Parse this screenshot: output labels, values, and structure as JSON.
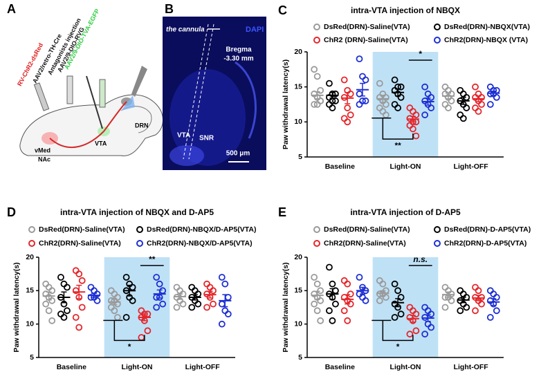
{
  "panel_a": {
    "label": "A",
    "texts": [
      "AAV2/9-DIO-TVA-EGFP",
      "AAV2/9-DIO-RVG",
      "Antagonists injection",
      "AAV2/retro-TH-Cre",
      "RV-ChR2-dsRed",
      "vMed",
      "NAc",
      "VTA",
      "DRN"
    ]
  },
  "panel_b": {
    "label": "B",
    "cannula": "the cannula",
    "stain": "DAPI",
    "bregma": "Bregma",
    "coordinate": "-3.30 mm",
    "vta": "VTA",
    "snr": "SNR",
    "scale": "500 μm"
  },
  "chart_data": [
    {
      "type": "dot",
      "panel_label": "C",
      "title": "intra-VTA injection of NBQX",
      "y_label": "Paw withdrawal latency(s)",
      "categories": [
        "Baseline",
        "Light-ON",
        "Light-OFF"
      ],
      "ylim": [
        5,
        20
      ],
      "yticks": [
        5,
        10,
        15,
        20
      ],
      "shaded": "Light-ON",
      "shade_color": "#bfe1f6",
      "annotations": {
        "upper": "*",
        "lower": "**"
      },
      "series": [
        {
          "name": "DsRed(DRN)-Saline(VTA)",
          "color": "#9a9a9a",
          "points": [
            [
              17.5,
              16.5,
              14.5,
              14,
              13.5,
              13,
              12.5,
              12.5,
              13
            ],
            [
              15.5,
              14,
              13.5,
              13.5,
              13,
              12.5,
              12,
              11.5,
              11
            ],
            [
              15,
              14.5,
              14,
              14,
              13.5,
              13,
              12.5,
              12
            ]
          ],
          "mean": [
            13.8,
            13.3,
            13.7
          ],
          "sem": [
            0.5,
            0.5,
            0.4
          ]
        },
        {
          "name": "DsRed(DRN)-NBQX(VTA)",
          "color": "#000000",
          "points": [
            [
              15.5,
              14,
              14,
              13.5,
              13,
              13,
              12.5,
              12
            ],
            [
              16,
              15,
              15,
              14.5,
              14,
              13.5,
              12.5,
              12
            ],
            [
              14.5,
              14,
              13.5,
              13,
              12.5,
              12,
              11,
              10.5
            ]
          ],
          "mean": [
            13.8,
            14.2,
            13
          ],
          "sem": [
            0.4,
            0.5,
            0.5
          ]
        },
        {
          "name": "ChR2 (DRN)-Saline(VTA)",
          "color": "#e4262b",
          "points": [
            [
              16,
              14.5,
              14,
              13.5,
              12,
              11,
              10.5,
              10
            ],
            [
              12,
              11.5,
              11,
              10.5,
              10,
              10,
              9.5,
              9,
              8
            ],
            [
              15,
              14,
              13.5,
              13.5,
              13,
              12.5,
              12,
              11.5
            ]
          ],
          "mean": [
            13.4,
            10.4,
            13.3
          ],
          "sem": [
            0.8,
            0.4,
            0.4
          ]
        },
        {
          "name": "ChR2(DRN)-NBQX (VTA)",
          "color": "#1d2fd3",
          "points": [
            [
              19,
              16.5,
              16,
              14,
              13,
              13,
              12.5
            ],
            [
              15,
              14,
              13.5,
              13,
              12.5,
              12,
              11
            ],
            [
              15,
              14.5,
              14.5,
              14,
              14,
              13.5,
              12.5
            ]
          ],
          "mean": [
            14.6,
            12.9,
            14.1
          ],
          "sem": [
            0.9,
            0.5,
            0.3
          ]
        }
      ]
    },
    {
      "type": "dot",
      "panel_label": "D",
      "title": "intra-VTA injection of NBQX and D-AP5",
      "y_label": "Paw withdrawal latency(s)",
      "categories": [
        "Baseline",
        "Light-ON",
        "Light-OFF"
      ],
      "ylim": [
        5,
        20
      ],
      "yticks": [
        5,
        10,
        15,
        20
      ],
      "shaded": "Light-ON",
      "shade_color": "#bfe1f6",
      "annotations": {
        "upper": "**",
        "lower": "*"
      },
      "series": [
        {
          "name": "DsRed(DRN)-Saline(VTA)",
          "color": "#9a9a9a",
          "points": [
            [
              16,
              15.5,
              15,
              14.5,
              14,
              13.5,
              13,
              12,
              10.5
            ],
            [
              15,
              14.5,
              14,
              13.5,
              13.5,
              13,
              12.5,
              12,
              11
            ],
            [
              15.5,
              15,
              14.5,
              14,
              13.5,
              13,
              12.5
            ]
          ],
          "mean": [
            14.2,
            13.3,
            14.1
          ],
          "sem": [
            0.6,
            0.4,
            0.4
          ]
        },
        {
          "name": "DsRed(DRN)-NBQX/D-AP5(VTA)",
          "color": "#000000",
          "points": [
            [
              17,
              16,
              15.5,
              14,
              13,
              12,
              11.5,
              11
            ],
            [
              17,
              16,
              15.5,
              15,
              14,
              13.5,
              11
            ],
            [
              15.5,
              15,
              14.5,
              14,
              13.5,
              13,
              12.5
            ]
          ],
          "mean": [
            14,
            15,
            14
          ],
          "sem": [
            0.8,
            0.8,
            0.4
          ]
        },
        {
          "name": "ChR2(DRN)-Saline(VTA)",
          "color": "#e4262b",
          "points": [
            [
              18,
              17.5,
              16.5,
              15,
              14,
              12.5,
              11,
              9.5
            ],
            [
              12,
              11.5,
              11.5,
              11,
              10.5,
              9,
              8
            ],
            [
              16,
              15.5,
              15,
              14.5,
              14,
              13,
              12.5
            ]
          ],
          "mean": [
            14.8,
            11,
            14.4
          ],
          "sem": [
            1,
            0.5,
            0.5
          ]
        },
        {
          "name": "ChR2(DRN)-NBQX/D-AP5(VTA)",
          "color": "#1d2fd3",
          "points": [
            [
              15.5,
              15,
              14.5,
              14,
              14,
              13.5
            ],
            [
              17,
              16,
              15,
              14,
              14,
              13,
              12.5
            ],
            [
              17,
              16,
              14,
              13,
              12,
              11.5,
              10
            ]
          ],
          "mean": [
            14.3,
            14.5,
            13.5
          ],
          "sem": [
            0.3,
            0.6,
            0.9
          ]
        }
      ]
    },
    {
      "type": "dot",
      "panel_label": "E",
      "title": "intra-VTA injection of D-AP5",
      "y_label": "Paw withdrawal latency(s)",
      "categories": [
        "Baseline",
        "Light-ON",
        "Light-OFF"
      ],
      "ylim": [
        5,
        20
      ],
      "yticks": [
        5,
        10,
        15,
        20
      ],
      "shaded": "Light-ON",
      "shade_color": "#bfe1f6",
      "annotations": {
        "upper": "n.s.",
        "lower": "*"
      },
      "series": [
        {
          "name": "DsRed(DRN)-Saline(VTA)",
          "color": "#9a9a9a",
          "points": [
            [
              17,
              16,
              15,
              14.5,
              14,
              13.5,
              13,
              12,
              10.5
            ],
            [
              16.5,
              16,
              15,
              14.5,
              14.5,
              14,
              13.5
            ],
            [
              15.5,
              15,
              14.5,
              14,
              14,
              13.5,
              12.5
            ]
          ],
          "mean": [
            14.3,
            14.6,
            14.4
          ],
          "sem": [
            0.6,
            0.4,
            0.4
          ]
        },
        {
          "name": "DsRed(DRN)-D-AP5(VTA)",
          "color": "#000000",
          "points": [
            [
              18.5,
              16,
              15,
              14.5,
              14,
              13,
              12,
              10.5
            ],
            [
              16,
              15,
              14,
              13,
              12.5,
              11.5,
              11
            ],
            [
              15,
              14.5,
              14,
              13.5,
              13,
              12.5,
              12
            ]
          ],
          "mean": [
            14.5,
            13.2,
            13.6
          ],
          "sem": [
            0.8,
            0.6,
            0.4
          ]
        },
        {
          "name": "ChR2(DRN)-Saline(VTA)",
          "color": "#e4262b",
          "points": [
            [
              16.5,
              16,
              14.5,
              14,
              13.5,
              13,
              12,
              10.5
            ],
            [
              12.5,
              12,
              11.5,
              11,
              10.5,
              9,
              8.5
            ],
            [
              15.5,
              15,
              14,
              14,
              13.5,
              13,
              12
            ]
          ],
          "mean": [
            13.7,
            10.8,
            13.9
          ],
          "sem": [
            0.7,
            0.5,
            0.4
          ]
        },
        {
          "name": "ChR2(DRN)-D-AP5(VTA)",
          "color": "#1d2fd3",
          "points": [
            [
              17,
              15.5,
              15,
              14.5,
              14,
              13.5
            ],
            [
              12.5,
              12,
              11.5,
              11,
              10,
              9.5,
              8.5
            ],
            [
              15,
              14.5,
              14,
              13.5,
              13,
              12,
              11
            ]
          ],
          "mean": [
            15,
            10.9,
            13.3
          ],
          "sem": [
            0.5,
            0.5,
            0.5
          ]
        }
      ]
    }
  ]
}
